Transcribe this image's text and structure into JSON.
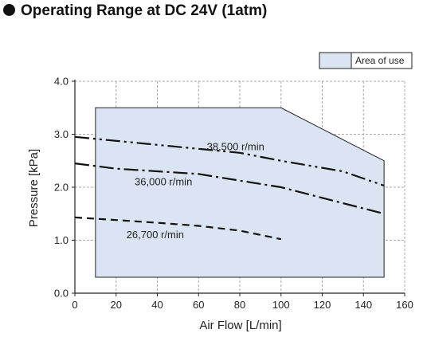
{
  "title": "Operating Range at DC 24V (1atm)",
  "chart_data": {
    "type": "line",
    "xlabel": "Air Flow [L/min]",
    "ylabel": "Pressure [kPa]",
    "xlim": [
      0,
      160
    ],
    "ylim": [
      0,
      4.0
    ],
    "xticks": [
      "0",
      "20",
      "40",
      "60",
      "80",
      "100",
      "120",
      "140",
      "160"
    ],
    "yticks": [
      "0.0",
      "1.0",
      "2.0",
      "3.0",
      "4.0"
    ],
    "grid": true,
    "legend": {
      "label": "Area of use",
      "placement": "top-right"
    },
    "area_of_use": {
      "label": "Area of use",
      "polygon": [
        [
          10,
          0.3
        ],
        [
          10,
          3.5
        ],
        [
          100,
          3.5
        ],
        [
          150,
          2.5
        ],
        [
          150,
          0.3
        ]
      ],
      "color": "#dbe4f2"
    },
    "series": [
      {
        "name": "38,500 r/min",
        "dash": "dash-dot-dot",
        "x": [
          0,
          40,
          80,
          100,
          130,
          150
        ],
        "y": [
          2.95,
          2.8,
          2.65,
          2.5,
          2.3,
          2.03
        ]
      },
      {
        "name": "36,000 r/min",
        "dash": "dash-dot",
        "x": [
          0,
          20,
          60,
          100,
          150
        ],
        "y": [
          2.45,
          2.35,
          2.25,
          2.0,
          1.5
        ]
      },
      {
        "name": "26,700 r/min",
        "dash": "dashed",
        "x": [
          0,
          20,
          40,
          60,
          80,
          100
        ],
        "y": [
          1.43,
          1.38,
          1.33,
          1.27,
          1.18,
          1.02
        ]
      }
    ]
  }
}
